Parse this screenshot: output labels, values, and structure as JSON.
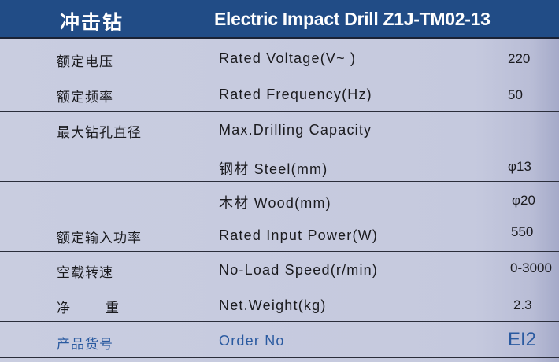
{
  "header": {
    "title_cn": "冲击钻",
    "title_en": "Electric Impact Drill  Z1J-TM02-13"
  },
  "rows": [
    {
      "cn": "额定电压",
      "en": "Rated Voltage(V~ )",
      "value": "220"
    },
    {
      "cn": "额定频率",
      "en": "Rated Frequency(Hz)",
      "value": "50"
    },
    {
      "cn": "最大钻孔直径",
      "en": "Max.Drilling Capacity",
      "value": ""
    },
    {
      "cn": "",
      "en": "钢材 Steel(mm)",
      "value": "φ13"
    },
    {
      "cn": "",
      "en": "木材 Wood(mm)",
      "value": "φ20"
    },
    {
      "cn": "额定输入功率",
      "en": "Rated Input Power(W)",
      "value": "550"
    },
    {
      "cn": "空载转速",
      "en": "No-Load Speed(r/min)",
      "value": "0-3000"
    },
    {
      "cn_a": "净",
      "cn_b": "重",
      "en": "Net.Weight(kg)",
      "value": "2.3"
    },
    {
      "cn": "产品货号",
      "en": "Order No",
      "value": "EI2"
    }
  ],
  "colors": {
    "header_bg": "#214c86",
    "background": "#c9cde0",
    "order_text": "#2a5aa0"
  }
}
